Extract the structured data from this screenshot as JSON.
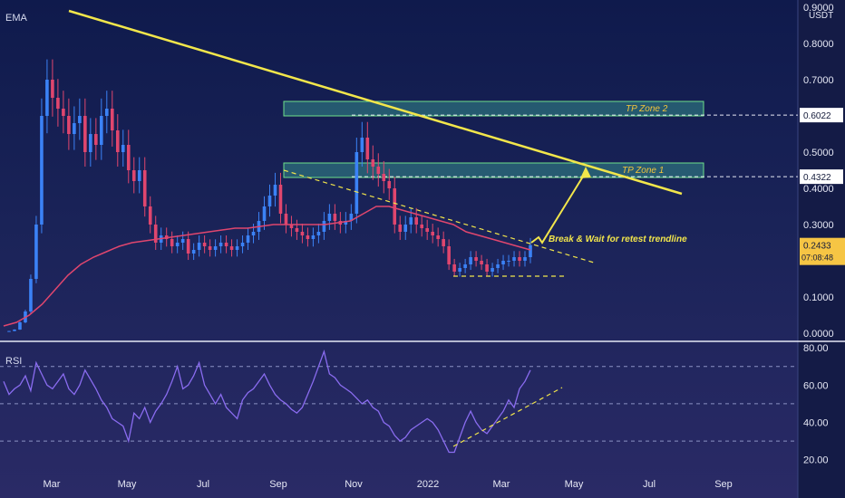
{
  "chart_data": [
    {
      "type": "candlestick",
      "indicator_label": "EMA",
      "currency_label": "USDT",
      "y_tick_labels": [
        "0.9000",
        "0.8000",
        "0.7000",
        "0.5000",
        "0.4000",
        "0.3000",
        "0.1000",
        "0.0000"
      ],
      "y_ticks": [
        0.9,
        0.8,
        0.7,
        0.5,
        0.4,
        0.3,
        0.1,
        0.0
      ],
      "ylim": [
        0,
        0.9
      ],
      "x_tick_labels": [
        "Mar",
        "May",
        "Jul",
        "Sep",
        "Nov",
        "2022",
        "Mar",
        "May",
        "Jul",
        "Sep"
      ],
      "price_levels": [
        {
          "label": "0.6022",
          "value": 0.6022
        },
        {
          "label": "0.4322",
          "value": 0.4322
        }
      ],
      "current_price": {
        "label": "0.2433",
        "value": 0.2433,
        "countdown": "07:08:48"
      },
      "zones": [
        {
          "label": "TP Zone 2",
          "low": 0.6,
          "high": 0.64
        },
        {
          "label": "TP Zone 1",
          "low": 0.43,
          "high": 0.47
        }
      ],
      "annotation": "Break & Wait for retest trendline",
      "series_closes": [
        0.005,
        0.006,
        0.01,
        0.03,
        0.06,
        0.15,
        0.3,
        0.6,
        0.7,
        0.65,
        0.62,
        0.6,
        0.55,
        0.58,
        0.6,
        0.5,
        0.55,
        0.52,
        0.6,
        0.62,
        0.56,
        0.5,
        0.52,
        0.45,
        0.42,
        0.45,
        0.35,
        0.3,
        0.25,
        0.27,
        0.26,
        0.24,
        0.25,
        0.26,
        0.22,
        0.23,
        0.25,
        0.24,
        0.23,
        0.24,
        0.25,
        0.24,
        0.23,
        0.24,
        0.25,
        0.27,
        0.28,
        0.31,
        0.35,
        0.38,
        0.41,
        0.33,
        0.3,
        0.29,
        0.28,
        0.27,
        0.26,
        0.27,
        0.28,
        0.31,
        0.33,
        0.31,
        0.3,
        0.31,
        0.33,
        0.5,
        0.54,
        0.48,
        0.46,
        0.44,
        0.42,
        0.4,
        0.3,
        0.28,
        0.3,
        0.32,
        0.3,
        0.29,
        0.28,
        0.27,
        0.26,
        0.24,
        0.19,
        0.17,
        0.18,
        0.19,
        0.21,
        0.2,
        0.19,
        0.17,
        0.18,
        0.19,
        0.2,
        0.2,
        0.21,
        0.2,
        0.21,
        0.2433
      ],
      "ema_values": [
        0.02,
        0.03,
        0.05,
        0.08,
        0.12,
        0.16,
        0.19,
        0.21,
        0.225,
        0.24,
        0.25,
        0.255,
        0.26,
        0.265,
        0.27,
        0.275,
        0.28,
        0.285,
        0.29,
        0.29,
        0.295,
        0.3,
        0.3,
        0.3,
        0.3,
        0.3,
        0.305,
        0.31,
        0.33,
        0.35,
        0.35,
        0.34,
        0.33,
        0.32,
        0.31,
        0.3,
        0.28,
        0.27,
        0.26,
        0.25,
        0.24,
        0.23
      ]
    },
    {
      "type": "line",
      "indicator_label": "RSI",
      "y_tick_labels": [
        "80.00",
        "60.00",
        "40.00",
        "20.00"
      ],
      "y_ticks": [
        80,
        60,
        40,
        20
      ],
      "ylim": [
        15,
        82
      ],
      "bands": [
        70,
        50,
        30
      ],
      "values": [
        62,
        55,
        58,
        60,
        65,
        57,
        72,
        66,
        60,
        58,
        62,
        66,
        58,
        55,
        60,
        68,
        63,
        58,
        52,
        48,
        42,
        40,
        38,
        30,
        45,
        42,
        48,
        40,
        46,
        50,
        55,
        62,
        70,
        58,
        60,
        65,
        72,
        60,
        55,
        50,
        55,
        48,
        45,
        42,
        52,
        56,
        58,
        62,
        66,
        60,
        55,
        52,
        50,
        47,
        45,
        48,
        55,
        62,
        70,
        78,
        66,
        64,
        60,
        58,
        56,
        53,
        50,
        52,
        48,
        46,
        40,
        38,
        33,
        30,
        32,
        36,
        38,
        40,
        42,
        40,
        36,
        30,
        24,
        24,
        32,
        40,
        46,
        40,
        36,
        34,
        38,
        42,
        46,
        52,
        48,
        58,
        62,
        68
      ]
    }
  ]
}
